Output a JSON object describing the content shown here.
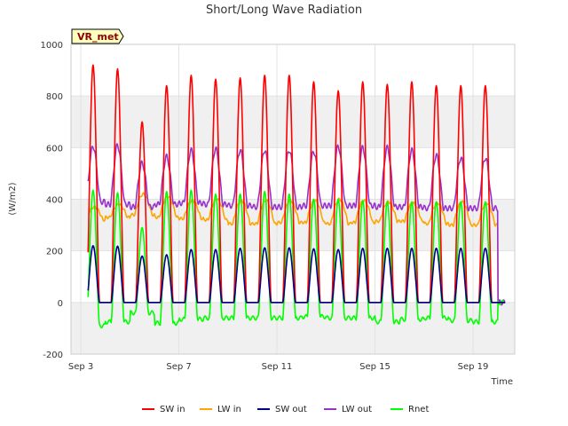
{
  "chart_data": {
    "type": "line",
    "title": "Short/Long Wave Radiation",
    "xlabel": "Time",
    "ylabel": "(W/m2)",
    "badge": "VR_met",
    "xlim": [
      2.6,
      20.7
    ],
    "ylim": [
      -200,
      1000
    ],
    "x_ticks": [
      3,
      7,
      11,
      15,
      19
    ],
    "x_tick_labels": [
      "Sep 3",
      "Sep 7",
      "Sep 11",
      "Sep 15",
      "Sep 19"
    ],
    "y_ticks": [
      -200,
      0,
      200,
      400,
      600,
      800,
      1000
    ],
    "y_tick_labels": [
      "-200",
      "0",
      "200",
      "400",
      "600",
      "800",
      "1000"
    ],
    "grid": true,
    "legend_position": "bottom",
    "days": [
      3,
      4,
      5,
      6,
      7,
      8,
      9,
      10,
      11,
      12,
      13,
      14,
      15,
      16,
      17,
      18,
      19,
      20
    ],
    "series": [
      {
        "name": "SW in",
        "color": "#ff0000",
        "daily_peaks": [
          920,
          905,
          700,
          840,
          880,
          865,
          870,
          880,
          880,
          855,
          820,
          855,
          845,
          855,
          840,
          840,
          840,
          0
        ]
      },
      {
        "name": "LW in",
        "color": "#ffa500",
        "daily_max": [
          370,
          380,
          420,
          410,
          395,
          400,
          395,
          395,
          395,
          395,
          400,
          395,
          390,
          385,
          385,
          390,
          385,
          0
        ],
        "daily_min": [
          320,
          330,
          340,
          330,
          325,
          320,
          305,
          305,
          310,
          310,
          305,
          310,
          315,
          315,
          305,
          300,
          300,
          0
        ]
      },
      {
        "name": "SW out",
        "color": "#00008b",
        "daily_peaks": [
          220,
          218,
          180,
          185,
          205,
          205,
          210,
          212,
          212,
          208,
          205,
          210,
          210,
          210,
          210,
          210,
          210,
          0
        ]
      },
      {
        "name": "LW out",
        "color": "#9932cc",
        "daily_peaks": [
          605,
          610,
          540,
          565,
          590,
          595,
          590,
          590,
          590,
          585,
          605,
          600,
          600,
          590,
          570,
          560,
          560,
          0
        ],
        "daily_min": [
          390,
          380,
          370,
          380,
          385,
          380,
          375,
          370,
          370,
          375,
          375,
          375,
          370,
          370,
          365,
          365,
          365,
          0
        ]
      },
      {
        "name": "Rnet",
        "color": "#00ff00",
        "daily_peaks": [
          435,
          425,
          290,
          430,
          435,
          420,
          420,
          430,
          420,
          400,
          400,
          395,
          390,
          390,
          390,
          390,
          390,
          0
        ],
        "daily_min": [
          -90,
          -75,
          -40,
          -80,
          -65,
          -60,
          -60,
          -60,
          -60,
          -55,
          -60,
          -60,
          -75,
          -65,
          -60,
          -70,
          -75,
          0
        ]
      }
    ]
  }
}
